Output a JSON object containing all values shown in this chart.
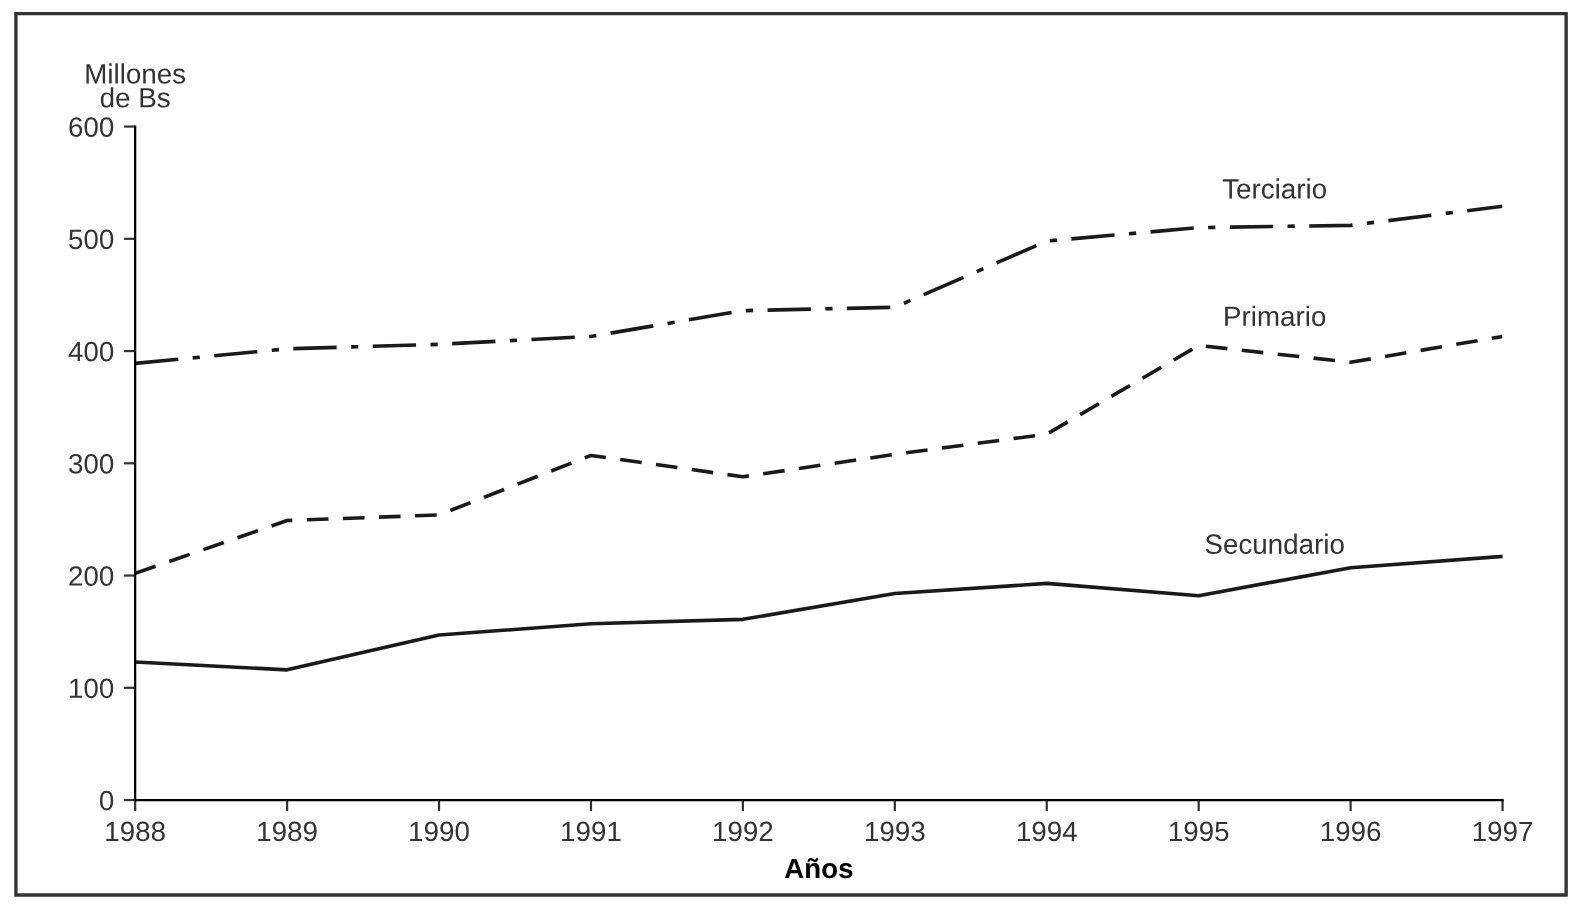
{
  "chart_data": {
    "type": "line",
    "xlabel": "Años",
    "ylabel": "Millones\nde Bs",
    "x": [
      1988,
      1989,
      1990,
      1991,
      1992,
      1993,
      1994,
      1995,
      1996,
      1997
    ],
    "series": [
      {
        "name": "Terciario",
        "color": "#1a1a1a",
        "line_style": "dashdot",
        "values": [
          389,
          402,
          406,
          413,
          436,
          439,
          498,
          510,
          512,
          529
        ]
      },
      {
        "name": "Primario",
        "color": "#1a1a1a",
        "line_style": "dashed",
        "values": [
          202,
          249,
          254,
          307,
          288,
          308,
          326,
          405,
          390,
          413
        ]
      },
      {
        "name": "Secundario",
        "color": "#1a1a1a",
        "line_style": "solid",
        "values": [
          123,
          116,
          147,
          157,
          161,
          184,
          193,
          182,
          207,
          217
        ]
      }
    ],
    "xlim": [
      1988,
      1997
    ],
    "xticks": [
      1988,
      1989,
      1990,
      1991,
      1992,
      1993,
      1994,
      1995,
      1996,
      1997
    ],
    "ylim": [
      0,
      600
    ],
    "yticks": [
      0,
      100,
      200,
      300,
      400,
      500,
      600
    ],
    "grid": false,
    "legend": false,
    "marker": "none"
  }
}
